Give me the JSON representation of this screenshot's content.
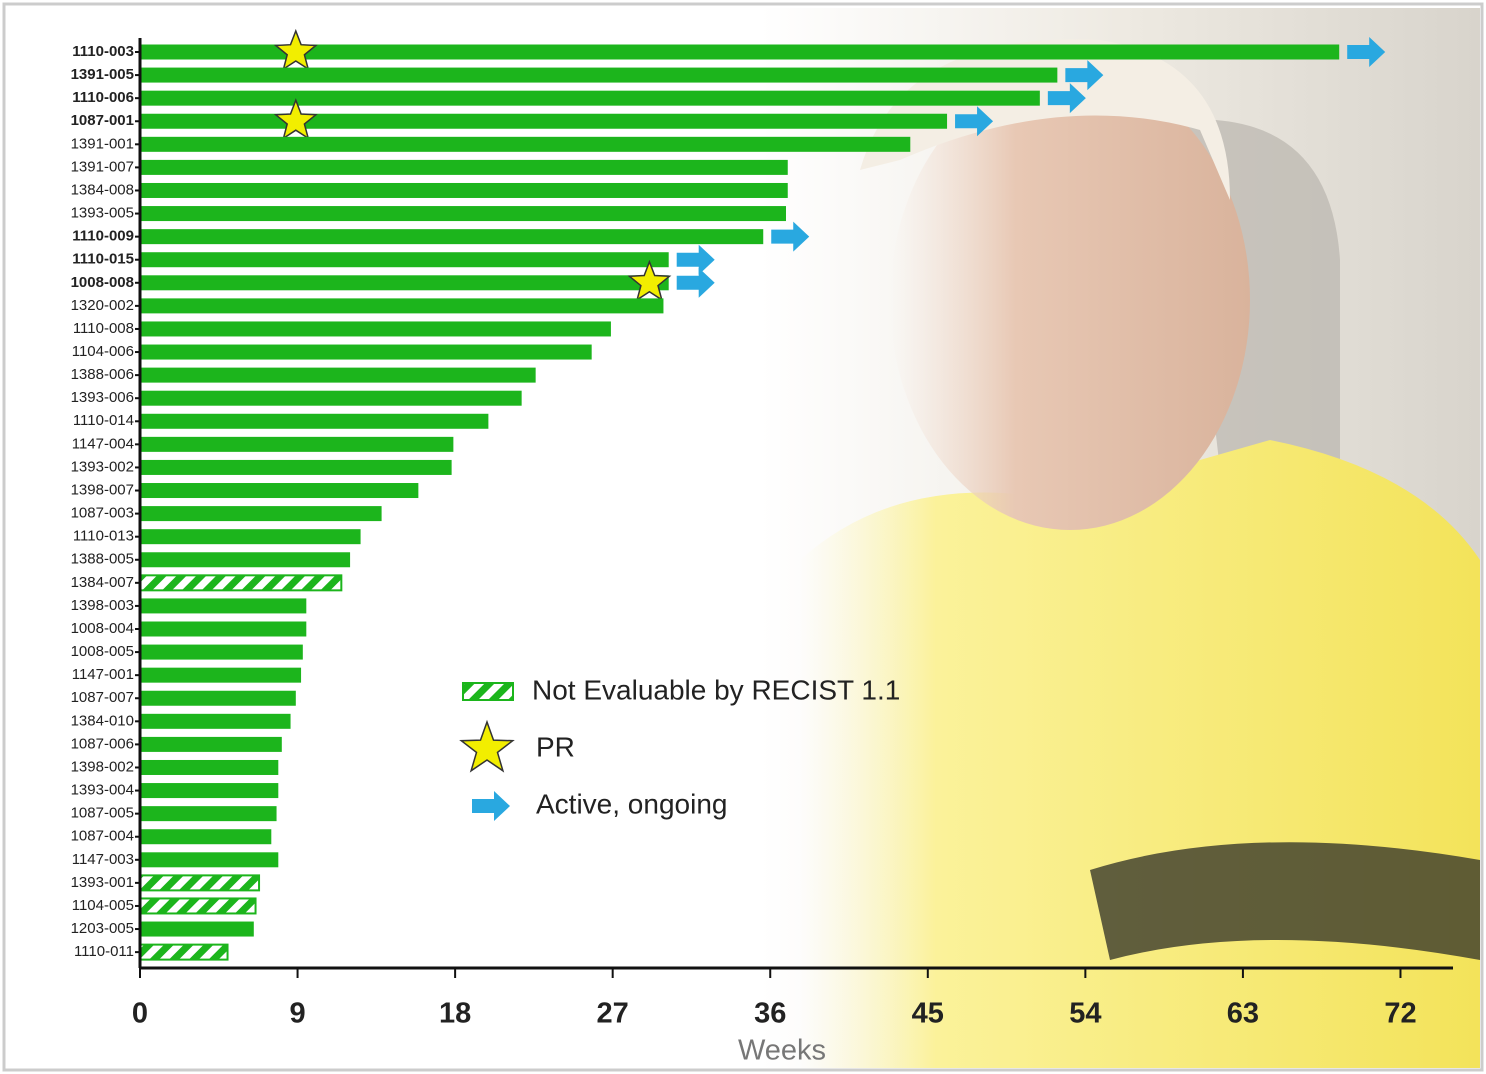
{
  "chart_data": {
    "type": "swimmer",
    "x_label": "Weeks",
    "color": "#1cb51c",
    "arrow_color": "#29a8e0",
    "star_color": "#f2ee00",
    "categories": [
      "1110-003",
      "1391-005",
      "1110-006",
      "1087-001",
      "1391-001",
      "1391-007",
      "1384-008",
      "1393-005",
      "1110-009",
      "1110-015",
      "1008-008",
      "1320-002",
      "1110-008",
      "1104-006",
      "1388-006",
      "1393-006",
      "1110-014",
      "1147-004",
      "1393-002",
      "1398-007",
      "1087-003",
      "1110-013",
      "1388-005",
      "1384-007",
      "1398-003",
      "1008-004",
      "1008-005",
      "1147-001",
      "1087-007",
      "1384-010",
      "1087-006",
      "1398-002",
      "1393-004",
      "1087-005",
      "1087-004",
      "1147-003",
      "1393-001",
      "1104-005",
      "1203-005",
      "1110-011"
    ],
    "values": [
      68.5,
      52.4,
      51.4,
      46.1,
      44.0,
      37.0,
      37.0,
      36.9,
      35.6,
      30.2,
      30.2,
      29.9,
      26.9,
      25.8,
      22.6,
      21.8,
      19.9,
      17.9,
      17.8,
      15.9,
      13.8,
      12.6,
      12.0,
      11.5,
      9.5,
      9.5,
      9.3,
      9.2,
      8.9,
      8.6,
      8.1,
      7.9,
      7.9,
      7.8,
      7.5,
      7.9,
      6.8,
      6.6,
      6.5,
      5.0
    ],
    "not_evaluable": [
      false,
      false,
      false,
      false,
      false,
      false,
      false,
      false,
      false,
      false,
      false,
      false,
      false,
      false,
      false,
      false,
      false,
      false,
      false,
      false,
      false,
      false,
      false,
      true,
      false,
      false,
      false,
      false,
      false,
      false,
      false,
      false,
      false,
      false,
      false,
      false,
      true,
      true,
      false,
      true
    ],
    "ongoing": [
      true,
      true,
      true,
      true,
      false,
      false,
      false,
      false,
      true,
      true,
      true,
      false,
      false,
      false,
      false,
      false,
      false,
      false,
      false,
      false,
      false,
      false,
      false,
      false,
      false,
      false,
      false,
      false,
      false,
      false,
      false,
      false,
      false,
      false,
      false,
      false,
      false,
      false,
      false,
      false
    ],
    "pr": [
      8.9,
      null,
      null,
      8.9,
      null,
      null,
      null,
      null,
      null,
      null,
      29.1,
      null,
      null,
      null,
      null,
      null,
      null,
      null,
      null,
      null,
      null,
      null,
      null,
      null,
      null,
      null,
      null,
      null,
      null,
      null,
      null,
      null,
      null,
      null,
      null,
      null,
      null,
      null,
      null,
      null
    ],
    "legend": {
      "not_evaluable": "Not Evaluable by RECIST 1.1",
      "pr": "PR",
      "ongoing": "Active, ongoing"
    },
    "xlim": [
      0,
      75
    ],
    "xticks": [
      0,
      9,
      18,
      27,
      36,
      45,
      54,
      63,
      72
    ]
  }
}
